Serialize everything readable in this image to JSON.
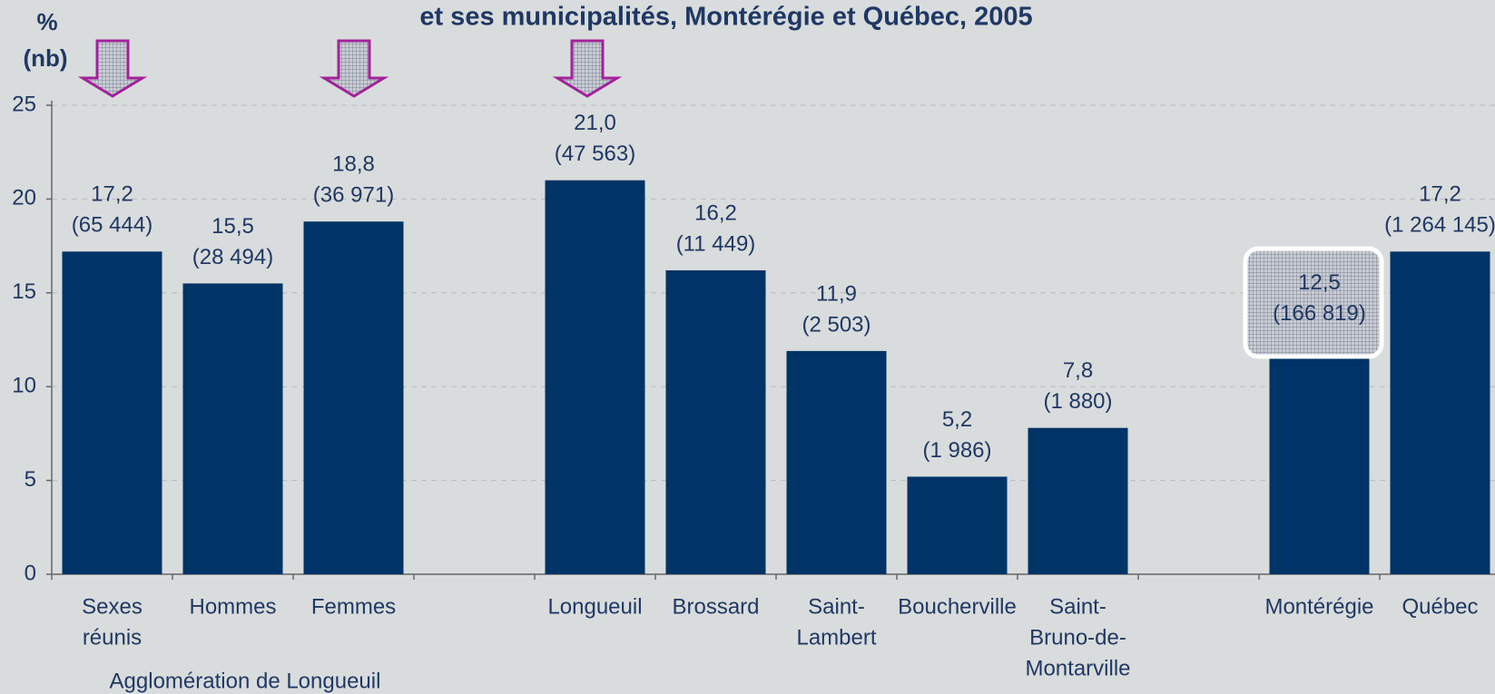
{
  "chart_data": {
    "type": "bar",
    "title": "et ses municipalités, Montérégie et Québec, 2005",
    "y_label": [
      "%",
      "(nb)"
    ],
    "group_label": "Agglomération de Longueuil",
    "categories": [
      [
        "Sexes",
        "réunis"
      ],
      [
        "Hommes"
      ],
      [
        "Femmes"
      ],
      null,
      [
        "Longueuil"
      ],
      [
        "Brossard"
      ],
      [
        "Saint-",
        "Lambert"
      ],
      [
        "Boucherville"
      ],
      [
        "Saint-",
        "Bruno-de-",
        "Montarville"
      ],
      null,
      [
        "Montérégie"
      ],
      [
        "Québec"
      ]
    ],
    "values": [
      17.2,
      15.5,
      18.8,
      null,
      21.0,
      16.2,
      11.9,
      5.2,
      7.8,
      null,
      12.5,
      17.2
    ],
    "value_labels": [
      "17,2",
      "15,5",
      "18,8",
      null,
      "21,0",
      "16,2",
      "11,9",
      "5,2",
      "7,8",
      null,
      "12,5",
      "17,2"
    ],
    "counts": [
      65444,
      28494,
      36971,
      null,
      47563,
      11449,
      2503,
      1986,
      1880,
      null,
      166819,
      1264145
    ],
    "count_labels": [
      "(65 444)",
      "(28 494)",
      "(36 971)",
      null,
      "(47 563)",
      "(11 449)",
      "(2 503)",
      "(1 986)",
      "(1 880)",
      null,
      "(166 819)",
      "(1 264 145)"
    ],
    "color": "#003366",
    "ylim": [
      0,
      25
    ],
    "yticks": [
      0,
      5,
      10,
      15,
      20,
      25
    ],
    "grid": true
  }
}
